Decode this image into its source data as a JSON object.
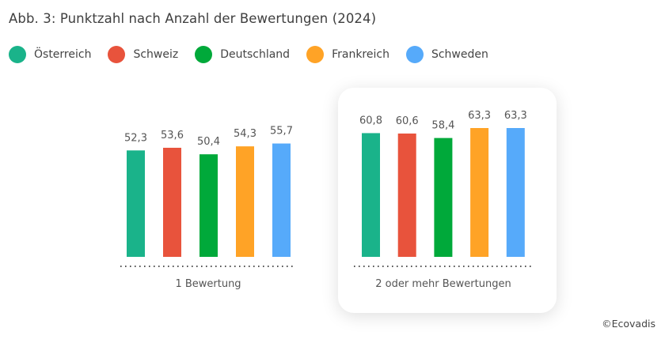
{
  "title": "Abb. 3: Punktzahl nach Anzahl der Bewertungen (2024)",
  "legend": [
    {
      "label": "Österreich",
      "color": "#1ab38a"
    },
    {
      "label": "Schweiz",
      "color": "#e8533c"
    },
    {
      "label": "Deutschland",
      "color": "#00a93a"
    },
    {
      "label": "Frankreich",
      "color": "#ffa326"
    },
    {
      "label": "Schweden",
      "color": "#56aafa"
    }
  ],
  "credit": "©Ecovadis",
  "chart_data": {
    "type": "bar",
    "title": "Abb. 3: Punktzahl nach Anzahl der Bewertungen (2024)",
    "xlabel": "",
    "ylabel": "",
    "ylim": [
      0,
      63.3
    ],
    "grid": false,
    "legend_position": "top-left",
    "categories": [
      "1 Bewertung",
      "2 oder mehr Bewertungen"
    ],
    "highlighted_category": "2 oder mehr Bewertungen",
    "series": [
      {
        "name": "Österreich",
        "color": "#1ab38a",
        "values": [
          52.3,
          60.8
        ],
        "labels": [
          "52,3",
          "60,8"
        ]
      },
      {
        "name": "Schweiz",
        "color": "#e8533c",
        "values": [
          53.6,
          60.6
        ],
        "labels": [
          "53,6",
          "60,6"
        ]
      },
      {
        "name": "Deutschland",
        "color": "#00a93a",
        "values": [
          50.4,
          58.4
        ],
        "labels": [
          "50,4",
          "58,4"
        ]
      },
      {
        "name": "Frankreich",
        "color": "#ffa326",
        "values": [
          54.3,
          63.3
        ],
        "labels": [
          "54,3",
          "63,3"
        ]
      },
      {
        "name": "Schweden",
        "color": "#56aafa",
        "values": [
          55.7,
          63.3
        ],
        "labels": [
          "55,7",
          "63,3"
        ]
      }
    ]
  }
}
